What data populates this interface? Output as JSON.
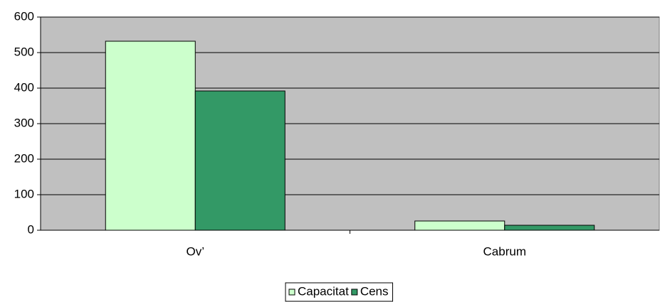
{
  "chart_data": {
    "type": "bar",
    "categories": [
      "Ov’",
      "Cabrum"
    ],
    "series": [
      {
        "name": "Capacitat",
        "color": "#ccffcc",
        "values": [
          532,
          26
        ]
      },
      {
        "name": "Cens",
        "color": "#339966",
        "values": [
          392,
          14
        ]
      }
    ],
    "ylim": [
      0,
      600
    ],
    "yticks": [
      0,
      100,
      200,
      300,
      400,
      500,
      600
    ],
    "grid": true,
    "plot_background": "#c0c0c0",
    "legend": "bottom"
  }
}
